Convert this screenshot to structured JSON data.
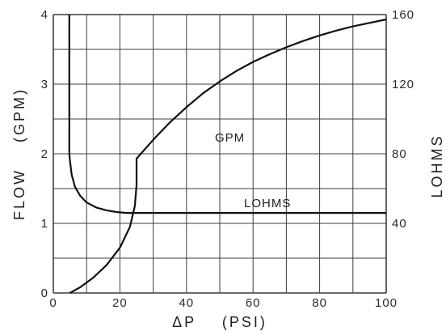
{
  "chart_data": {
    "type": "line",
    "xlabel": "ΔP    (PSI)",
    "ylabel": "FLOW    (GPM)",
    "y2label": "LOHMS",
    "xlim": [
      0,
      100
    ],
    "ylim": [
      0,
      4
    ],
    "y2lim": [
      0,
      160
    ],
    "x_ticks": [
      "0",
      "20",
      "40",
      "60",
      "80",
      "100"
    ],
    "y_ticks": [
      "0",
      "1",
      "2",
      "3",
      "4"
    ],
    "y2_ticks": [
      "40",
      "80",
      "120",
      "160"
    ],
    "grid": true,
    "series": [
      {
        "name": "GPM",
        "axis": "left",
        "x": [
          5,
          8,
          12,
          16,
          20,
          23,
          24.5,
          25,
          25,
          30,
          35,
          40,
          45,
          50,
          55,
          60,
          65,
          70,
          75,
          80,
          85,
          90,
          95,
          100
        ],
        "y": [
          0,
          0.08,
          0.22,
          0.4,
          0.65,
          0.95,
          1.25,
          1.55,
          1.93,
          2.2,
          2.45,
          2.67,
          2.87,
          3.04,
          3.19,
          3.32,
          3.43,
          3.53,
          3.62,
          3.7,
          3.77,
          3.83,
          3.88,
          3.93
        ]
      },
      {
        "name": "LOHMS",
        "axis": "right",
        "x": [
          4.8,
          4.8,
          4.8,
          5,
          5.5,
          6.5,
          8,
          10,
          13,
          16,
          19,
          22,
          25,
          30,
          40,
          60,
          80,
          100
        ],
        "y": [
          160,
          120,
          80,
          76,
          68,
          61,
          56,
          52,
          49,
          47.5,
          46.5,
          46,
          46,
          46,
          46,
          46,
          46,
          46
        ]
      }
    ]
  },
  "colors": {
    "line": "#111111",
    "grid": "#3c3c3c",
    "text": "#222222"
  }
}
